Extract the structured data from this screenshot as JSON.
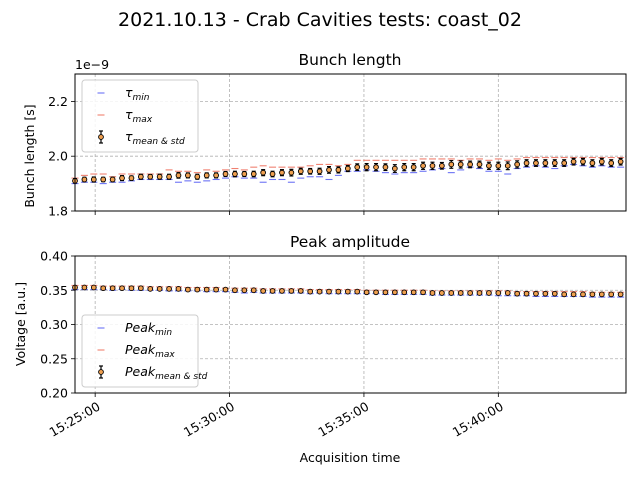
{
  "figure": {
    "title": "2021.10.13 - Crab Cavities tests: coast_02"
  },
  "colors": {
    "min": "#6b72f5",
    "max": "#f08070",
    "point_fill": "#f0a050",
    "point_edge": "#000000",
    "grid": "#b0b0b0"
  },
  "chart_data": [
    {
      "type": "scatter",
      "title": "Bunch length",
      "xlabel": "",
      "ylabel": "Bunch length [s]",
      "y_offset_label": "1e−9",
      "ylim": [
        1.8,
        2.3
      ],
      "yticks": [
        1.8,
        2.0,
        2.2
      ],
      "ytick_labels": [
        "1.8",
        "2.0",
        "2.2"
      ],
      "xlim": [
        "15:24:15",
        "15:44:45"
      ],
      "xticks": [
        "15:25:00",
        "15:30:00",
        "15:35:00",
        "15:40:00"
      ],
      "xtick_labels": [],
      "grid": true,
      "legend_position": "upper-left",
      "legend": [
        {
          "base": "τ",
          "sub": "min",
          "style": "min"
        },
        {
          "base": "τ",
          "sub": "max",
          "style": "max"
        },
        {
          "base": "τ",
          "sub": "mean & std",
          "style": "mean"
        }
      ],
      "x": [
        "15:24:15",
        "15:24:36",
        "15:24:57",
        "15:25:18",
        "15:25:39",
        "15:26:00",
        "15:26:21",
        "15:26:42",
        "15:27:03",
        "15:27:24",
        "15:27:45",
        "15:28:06",
        "15:28:27",
        "15:28:48",
        "15:29:09",
        "15:29:30",
        "15:29:51",
        "15:30:12",
        "15:30:33",
        "15:30:54",
        "15:31:15",
        "15:31:36",
        "15:31:57",
        "15:32:18",
        "15:32:39",
        "15:33:00",
        "15:33:21",
        "15:33:42",
        "15:34:03",
        "15:34:24",
        "15:34:45",
        "15:35:06",
        "15:35:27",
        "15:35:48",
        "15:36:09",
        "15:36:30",
        "15:36:51",
        "15:37:12",
        "15:37:33",
        "15:37:54",
        "15:38:15",
        "15:38:36",
        "15:38:57",
        "15:39:18",
        "15:39:39",
        "15:40:00",
        "15:40:21",
        "15:40:42",
        "15:41:03",
        "15:41:24",
        "15:41:45",
        "15:42:06",
        "15:42:27",
        "15:42:48",
        "15:43:09",
        "15:43:30",
        "15:43:51",
        "15:44:12",
        "15:44:33"
      ],
      "series": [
        {
          "name": "τ min",
          "values": [
            1.9,
            1.905,
            1.905,
            1.9,
            1.905,
            1.905,
            1.91,
            1.915,
            1.915,
            1.915,
            1.915,
            1.905,
            1.91,
            1.905,
            1.91,
            1.915,
            1.92,
            1.925,
            1.92,
            1.92,
            1.905,
            1.915,
            1.915,
            1.905,
            1.92,
            1.925,
            1.925,
            1.915,
            1.93,
            1.945,
            1.945,
            1.95,
            1.945,
            1.94,
            1.935,
            1.94,
            1.94,
            1.945,
            1.95,
            1.955,
            1.94,
            1.95,
            1.96,
            1.955,
            1.945,
            1.945,
            1.935,
            1.955,
            1.96,
            1.965,
            1.96,
            1.955,
            1.965,
            1.97,
            1.965,
            1.96,
            1.965,
            1.96,
            1.96
          ]
        },
        {
          "name": "τ max",
          "values": [
            1.92,
            1.93,
            1.935,
            1.935,
            1.925,
            1.935,
            1.935,
            1.935,
            1.935,
            1.935,
            1.95,
            1.945,
            1.945,
            1.94,
            1.95,
            1.945,
            1.95,
            1.955,
            1.95,
            1.96,
            1.965,
            1.96,
            1.96,
            1.96,
            1.96,
            1.965,
            1.97,
            1.97,
            1.965,
            1.97,
            1.985,
            1.985,
            1.985,
            1.985,
            1.985,
            1.985,
            1.985,
            1.99,
            1.99,
            1.99,
            1.99,
            1.985,
            1.99,
            1.99,
            1.985,
            1.99,
            1.985,
            1.99,
            1.995,
            1.995,
            1.995,
            1.995,
            1.995,
            1.995,
            1.995,
            1.995,
            1.995,
            1.995,
            1.995
          ]
        },
        {
          "name": "τ mean",
          "values": [
            1.91,
            1.915,
            1.915,
            1.915,
            1.915,
            1.92,
            1.92,
            1.925,
            1.925,
            1.925,
            1.925,
            1.93,
            1.93,
            1.925,
            1.93,
            1.93,
            1.935,
            1.935,
            1.935,
            1.935,
            1.94,
            1.935,
            1.94,
            1.94,
            1.945,
            1.945,
            1.945,
            1.95,
            1.95,
            1.955,
            1.96,
            1.96,
            1.96,
            1.96,
            1.955,
            1.96,
            1.96,
            1.965,
            1.965,
            1.965,
            1.97,
            1.97,
            1.97,
            1.97,
            1.965,
            1.965,
            1.965,
            1.97,
            1.975,
            1.975,
            1.975,
            1.975,
            1.975,
            1.98,
            1.98,
            1.975,
            1.98,
            1.975,
            1.98
          ]
        },
        {
          "name": "τ std",
          "values": [
            0.008,
            0.008,
            0.009,
            0.008,
            0.008,
            0.009,
            0.008,
            0.009,
            0.008,
            0.009,
            0.009,
            0.01,
            0.009,
            0.009,
            0.009,
            0.009,
            0.009,
            0.01,
            0.009,
            0.01,
            0.011,
            0.01,
            0.011,
            0.012,
            0.011,
            0.01,
            0.011,
            0.012,
            0.011,
            0.011,
            0.012,
            0.013,
            0.013,
            0.012,
            0.014,
            0.013,
            0.013,
            0.013,
            0.013,
            0.012,
            0.014,
            0.013,
            0.012,
            0.012,
            0.013,
            0.013,
            0.014,
            0.013,
            0.012,
            0.012,
            0.012,
            0.012,
            0.012,
            0.012,
            0.012,
            0.012,
            0.012,
            0.012,
            0.012
          ]
        }
      ]
    },
    {
      "type": "scatter",
      "title": "Peak amplitude",
      "xlabel": "Acquisition time",
      "ylabel": "Voltage [a.u.]",
      "ylim": [
        0.2,
        0.4
      ],
      "yticks": [
        0.2,
        0.25,
        0.3,
        0.35,
        0.4
      ],
      "ytick_labels": [
        "0.20",
        "0.25",
        "0.30",
        "0.35",
        "0.40"
      ],
      "xlim": [
        "15:24:15",
        "15:44:45"
      ],
      "xticks": [
        "15:25:00",
        "15:30:00",
        "15:35:00",
        "15:40:00"
      ],
      "xtick_labels": [
        "15:25:00",
        "15:30:00",
        "15:35:00",
        "15:40:00"
      ],
      "grid": true,
      "legend_position": "lower-left",
      "legend": [
        {
          "base": "Peak",
          "sub": "min",
          "style": "min"
        },
        {
          "base": "Peak",
          "sub": "max",
          "style": "max"
        },
        {
          "base": "Peak",
          "sub": "mean & std",
          "style": "mean"
        }
      ],
      "x": [
        "15:24:15",
        "15:24:36",
        "15:24:57",
        "15:25:18",
        "15:25:39",
        "15:26:00",
        "15:26:21",
        "15:26:42",
        "15:27:03",
        "15:27:24",
        "15:27:45",
        "15:28:06",
        "15:28:27",
        "15:28:48",
        "15:29:09",
        "15:29:30",
        "15:29:51",
        "15:30:12",
        "15:30:33",
        "15:30:54",
        "15:31:15",
        "15:31:36",
        "15:31:57",
        "15:32:18",
        "15:32:39",
        "15:33:00",
        "15:33:21",
        "15:33:42",
        "15:34:03",
        "15:34:24",
        "15:34:45",
        "15:35:06",
        "15:35:27",
        "15:35:48",
        "15:36:09",
        "15:36:30",
        "15:36:51",
        "15:37:12",
        "15:37:33",
        "15:37:54",
        "15:38:15",
        "15:38:36",
        "15:38:57",
        "15:39:18",
        "15:39:39",
        "15:40:00",
        "15:40:21",
        "15:40:42",
        "15:41:03",
        "15:41:24",
        "15:41:45",
        "15:42:06",
        "15:42:27",
        "15:42:48",
        "15:43:09",
        "15:43:30",
        "15:43:51",
        "15:44:12",
        "15:44:33"
      ],
      "series": [
        {
          "name": "Peak min",
          "values": [
            0.351,
            0.351,
            0.351,
            0.351,
            0.35,
            0.351,
            0.35,
            0.35,
            0.35,
            0.35,
            0.349,
            0.349,
            0.349,
            0.349,
            0.348,
            0.348,
            0.348,
            0.347,
            0.346,
            0.347,
            0.346,
            0.346,
            0.346,
            0.346,
            0.346,
            0.345,
            0.346,
            0.345,
            0.345,
            0.345,
            0.345,
            0.345,
            0.345,
            0.344,
            0.344,
            0.344,
            0.344,
            0.344,
            0.343,
            0.343,
            0.343,
            0.343,
            0.343,
            0.343,
            0.343,
            0.342,
            0.342,
            0.342,
            0.342,
            0.341,
            0.341,
            0.341,
            0.341,
            0.341,
            0.341,
            0.34,
            0.34,
            0.34,
            0.34
          ]
        },
        {
          "name": "Peak max",
          "values": [
            0.357,
            0.357,
            0.357,
            0.356,
            0.356,
            0.356,
            0.356,
            0.356,
            0.355,
            0.355,
            0.355,
            0.355,
            0.354,
            0.354,
            0.354,
            0.354,
            0.353,
            0.353,
            0.353,
            0.353,
            0.352,
            0.352,
            0.352,
            0.352,
            0.352,
            0.351,
            0.351,
            0.351,
            0.351,
            0.351,
            0.351,
            0.35,
            0.35,
            0.35,
            0.35,
            0.35,
            0.35,
            0.35,
            0.349,
            0.349,
            0.349,
            0.349,
            0.349,
            0.349,
            0.349,
            0.349,
            0.349,
            0.348,
            0.348,
            0.348,
            0.348,
            0.348,
            0.348,
            0.348,
            0.348,
            0.347,
            0.347,
            0.347,
            0.347
          ]
        },
        {
          "name": "Peak mean",
          "values": [
            0.354,
            0.354,
            0.354,
            0.353,
            0.353,
            0.353,
            0.353,
            0.353,
            0.352,
            0.352,
            0.352,
            0.352,
            0.351,
            0.351,
            0.351,
            0.351,
            0.351,
            0.35,
            0.35,
            0.35,
            0.349,
            0.349,
            0.349,
            0.349,
            0.349,
            0.348,
            0.348,
            0.348,
            0.348,
            0.348,
            0.348,
            0.347,
            0.347,
            0.347,
            0.347,
            0.347,
            0.347,
            0.347,
            0.346,
            0.346,
            0.346,
            0.346,
            0.346,
            0.346,
            0.346,
            0.346,
            0.346,
            0.345,
            0.345,
            0.345,
            0.345,
            0.345,
            0.344,
            0.344,
            0.344,
            0.344,
            0.344,
            0.344,
            0.344
          ]
        },
        {
          "name": "Peak std",
          "values": [
            0.0015,
            0.0015,
            0.0015,
            0.0015,
            0.0015,
            0.0015,
            0.0015,
            0.0015,
            0.0015,
            0.0015,
            0.0015,
            0.0015,
            0.0015,
            0.0015,
            0.0015,
            0.0015,
            0.0015,
            0.0015,
            0.0015,
            0.0015,
            0.0015,
            0.0015,
            0.0015,
            0.0015,
            0.0015,
            0.0015,
            0.0015,
            0.0015,
            0.0015,
            0.0015,
            0.0015,
            0.0015,
            0.0015,
            0.0015,
            0.0015,
            0.0015,
            0.0015,
            0.0015,
            0.0015,
            0.0015,
            0.0015,
            0.0015,
            0.0015,
            0.0015,
            0.0015,
            0.0015,
            0.0015,
            0.0015,
            0.0015,
            0.0015,
            0.0015,
            0.0015,
            0.0015,
            0.0015,
            0.0015,
            0.0015,
            0.0015,
            0.0015,
            0.0015
          ]
        }
      ]
    }
  ]
}
